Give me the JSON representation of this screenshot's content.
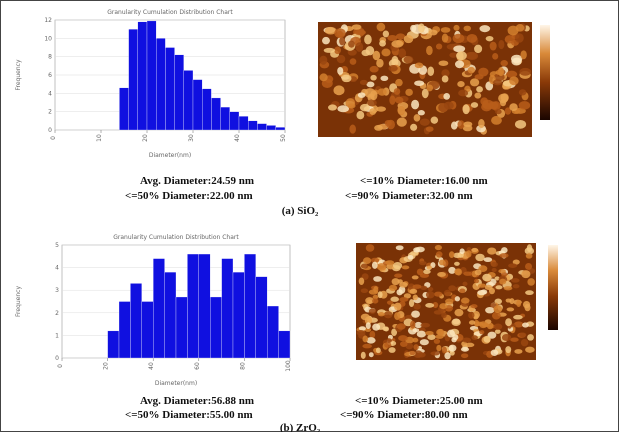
{
  "chart_data": [
    {
      "type": "histogram",
      "title": "Granularity Cumulation Distribution Chart",
      "x_label": "Diameter(nm)",
      "y_label": "Frequency",
      "bins": [
        14,
        16,
        18,
        20,
        22,
        24,
        26,
        28,
        30,
        32,
        34,
        36,
        38,
        40,
        42,
        44,
        46,
        48,
        50
      ],
      "values": [
        4.6,
        11,
        11.8,
        11.9,
        10,
        9,
        8.2,
        6.5,
        5.5,
        4.5,
        3.5,
        2.5,
        2,
        1.5,
        1,
        0.7,
        0.5,
        0.3
      ],
      "color": "#1010e0",
      "xlim": [
        0,
        50
      ],
      "xticks": [
        0,
        10,
        20,
        30,
        40,
        50
      ],
      "ylim": [
        0,
        12
      ],
      "yticks": [
        0,
        2,
        4,
        6,
        8,
        10,
        12
      ],
      "grid": true
    },
    {
      "type": "histogram",
      "title": "Granularity Cumulation Distribution Chart",
      "x_label": "Diameter(nm)",
      "y_label": "Frequency",
      "bins": [
        20,
        25,
        30,
        35,
        40,
        45,
        50,
        55,
        60,
        65,
        70,
        75,
        80,
        85,
        90,
        95,
        100
      ],
      "values": [
        1.2,
        2.5,
        3.3,
        2.5,
        4.4,
        3.8,
        2.7,
        4.6,
        4.6,
        2.7,
        4.4,
        3.8,
        4.6,
        3.6,
        2.3,
        1.2
      ],
      "color": "#1010e0",
      "xlim": [
        0,
        100
      ],
      "xticks": [
        0,
        20,
        40,
        60,
        80,
        100
      ],
      "ylim": [
        0,
        5
      ],
      "yticks": [
        0,
        1,
        2,
        3,
        4,
        5
      ],
      "grid": true
    }
  ],
  "stats": [
    {
      "avg": "Avg. Diameter:24.59 nm",
      "p10": "<=10% Diameter:16.00 nm",
      "p50": "<=50% Diameter:22.00 nm",
      "p90": "<=90% Diameter:32.00 nm",
      "caption": "(a) SiO₂"
    },
    {
      "avg": "Avg. Diameter:56.88 nm",
      "p10": "<=10% Diameter:25.00 nm",
      "p50": "<=50% Diameter:55.00 nm",
      "p90": "<=90% Diameter:80.00 nm",
      "caption": "(b) ZrO₂"
    }
  ]
}
